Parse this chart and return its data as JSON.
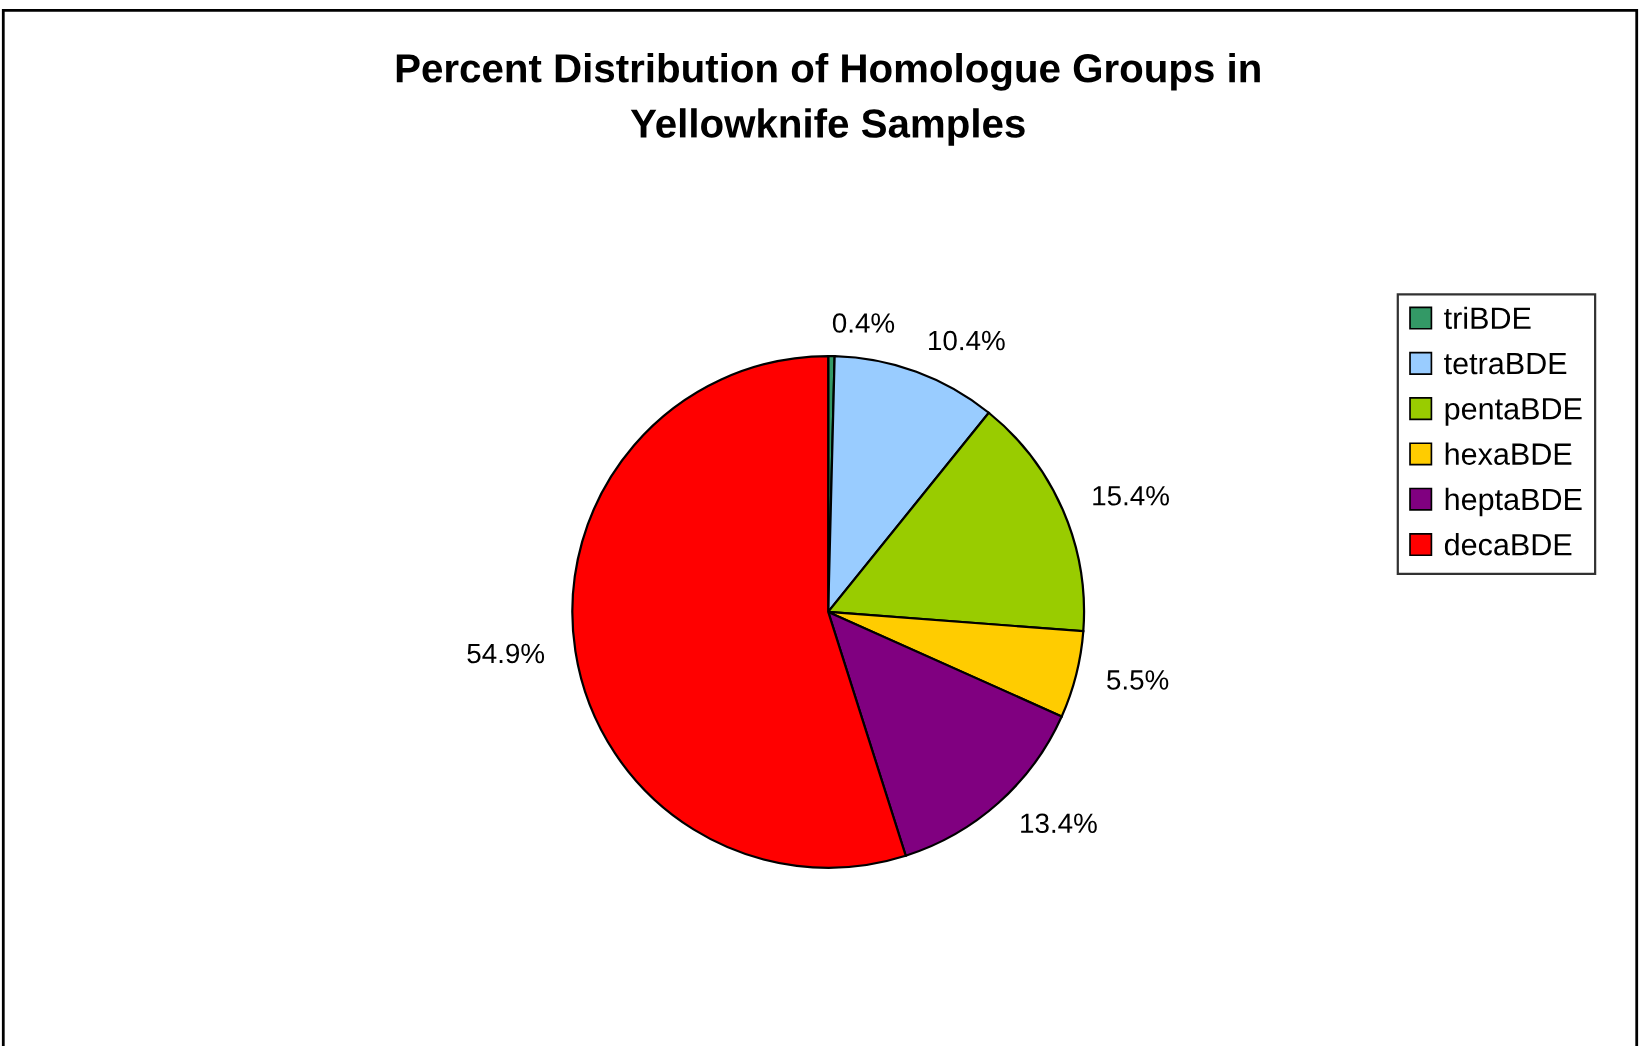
{
  "chart_data": {
    "type": "pie",
    "title": "Percent Distribution of Homologue Groups in\nYellowknife Samples",
    "categories": [
      "triBDE",
      "tetraBDE",
      "pentaBDE",
      "hexaBDE",
      "heptaBDE",
      "decaBDE"
    ],
    "values": [
      0.4,
      10.4,
      15.4,
      5.5,
      13.4,
      54.9
    ],
    "value_labels": [
      "0.4%",
      "10.4%",
      "15.4%",
      "5.5%",
      "13.4%",
      "54.9%"
    ],
    "colors": [
      "#339966",
      "#99ccff",
      "#99cc00",
      "#ffcc00",
      "#800080",
      "#ff0000"
    ],
    "legend": "right"
  }
}
